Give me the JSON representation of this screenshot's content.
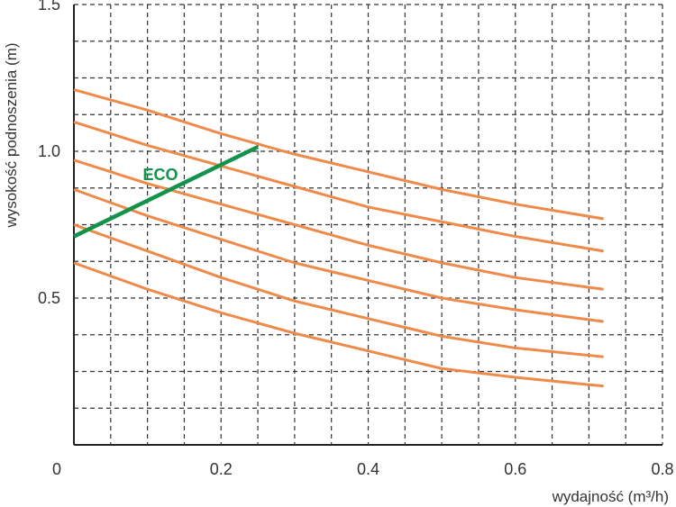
{
  "chart_data": {
    "type": "line",
    "x_label": "wydajność (m³/h)",
    "y_label": "wysokość podnoszenia (m)",
    "x": [
      0,
      0.1,
      0.2,
      0.3,
      0.4,
      0.5,
      0.6,
      0.72
    ],
    "series": [
      {
        "color": "#ee8a4a",
        "values": [
          1.21,
          1.14,
          1.06,
          0.99,
          0.93,
          0.87,
          0.82,
          0.77
        ]
      },
      {
        "color": "#ee8a4a",
        "values": [
          1.1,
          1.02,
          0.95,
          0.88,
          0.81,
          0.76,
          0.71,
          0.66
        ]
      },
      {
        "color": "#ee8a4a",
        "values": [
          0.97,
          0.89,
          0.82,
          0.75,
          0.68,
          0.62,
          0.57,
          0.53
        ]
      },
      {
        "color": "#ee8a4a",
        "values": [
          0.87,
          0.78,
          0.7,
          0.62,
          0.56,
          0.5,
          0.46,
          0.42
        ]
      },
      {
        "color": "#ee8a4a",
        "values": [
          0.75,
          0.66,
          0.57,
          0.49,
          0.43,
          0.37,
          0.33,
          0.3
        ]
      },
      {
        "color": "#ee8a4a",
        "values": [
          0.62,
          0.53,
          0.45,
          0.38,
          0.32,
          0.26,
          0.23,
          0.2
        ]
      },
      {
        "name": "ECO",
        "color": "#12924a",
        "x": [
          0,
          0.25
        ],
        "values": [
          0.71,
          1.015
        ]
      }
    ],
    "xlim": [
      0,
      0.8
    ],
    "ylim": [
      0,
      1.5
    ],
    "xticks": [
      0,
      0.2,
      0.4,
      0.6,
      0.8
    ],
    "yticks": [
      0.5,
      {
        "value": 1,
        "label": "1.0"
      },
      1.5
    ],
    "minor_xticks": [
      0.05,
      0.1,
      0.15,
      0.25,
      0.3,
      0.35,
      0.45,
      0.5,
      0.55,
      0.65,
      0.7,
      0.75
    ],
    "minor_yticks": [
      0.125,
      0.25,
      0.375,
      0.625,
      0.75,
      0.875,
      1.125,
      1.25,
      1.375
    ],
    "grid": true
  }
}
